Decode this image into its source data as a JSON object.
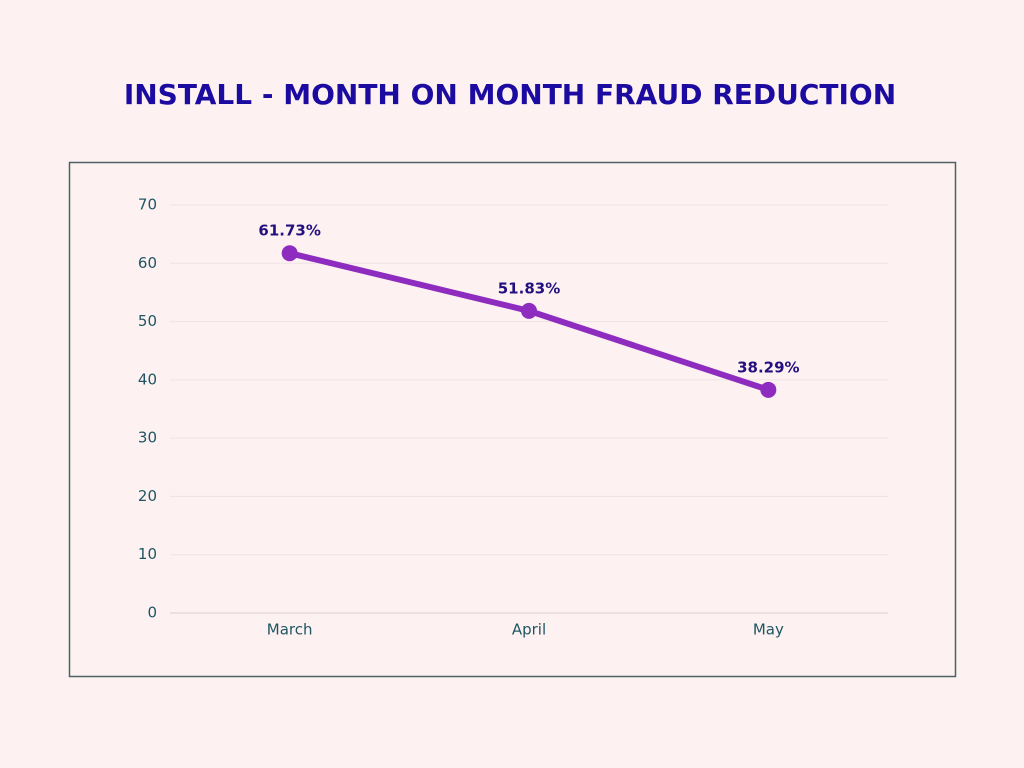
{
  "chart_data": {
    "type": "line",
    "title": "INSTALL - MONTH ON MONTH FRAUD REDUCTION",
    "categories": [
      "March",
      "April",
      "May"
    ],
    "values": [
      61.73,
      51.83,
      38.29
    ],
    "value_labels": [
      "61.73%",
      "51.83%",
      "38.29%"
    ],
    "color": "#8e2cbf",
    "ylim": [
      0,
      70
    ],
    "yticks": [
      0,
      10,
      20,
      30,
      40,
      50,
      60,
      70
    ],
    "grid": true
  }
}
